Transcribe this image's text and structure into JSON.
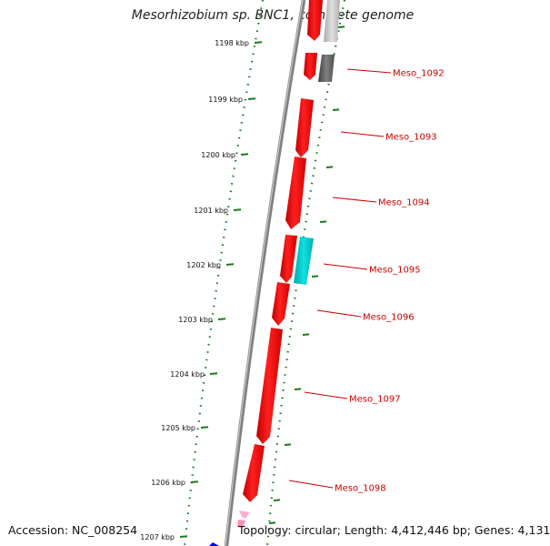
{
  "title": "Mesorhizobium sp. BNC1, complete genome",
  "footer": {
    "accession": "Accession: NC_008254",
    "topology": "Topology: circular; Length: 4,412,446 bp; Genes: 4,131"
  },
  "ruler": {
    "ticks": [
      "1198 kbp",
      "1199 kbp",
      "1200 kbp",
      "1201 kbp",
      "1202 kbp",
      "1203 kbp",
      "1204 kbp",
      "1205 kbp",
      "1206 kbp",
      "1207 kbp"
    ],
    "tick_color": "#1a7a1a"
  },
  "genes": [
    {
      "label": "Meso_1092",
      "color": "#ff0000"
    },
    {
      "label": "Meso_1093",
      "color": "#ff0000"
    },
    {
      "label": "Meso_1094",
      "color": "#ff0000"
    },
    {
      "label": "Meso_1095",
      "color": "#ff0000"
    },
    {
      "label": "Meso_1096",
      "color": "#ff0000"
    },
    {
      "label": "Meso_1097",
      "color": "#ff0000"
    },
    {
      "label": "Meso_1098",
      "color": "#ff0000"
    }
  ],
  "colors": {
    "backbone": "#808080",
    "cds_forward": "#ff0000",
    "feature_cyan": "#00cccc",
    "feature_gray": "#606060",
    "feature_light_gray": "#c0c0c0",
    "feature_pink": "#ffb0d0",
    "feature_blue": "#0000ff",
    "label_color": "#cc0000"
  }
}
